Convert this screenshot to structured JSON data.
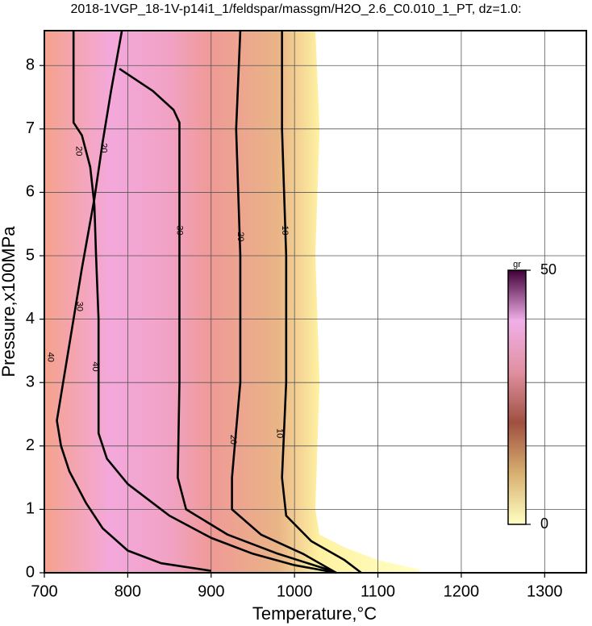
{
  "chart_data": {
    "type": "contour",
    "title": "2018-1VGP_18-1V-p14i1_1/feldspar/massgm/H2O_2.6_C0.010_1_PT, dz=1.0:",
    "x_label": "Temperature,°C",
    "y_label": "Pressure,x100MPa",
    "xlim": [
      700,
      1350
    ],
    "ylim": [
      0,
      8.55
    ],
    "xticks": [
      700,
      800,
      900,
      1000,
      1100,
      1200,
      1300
    ],
    "yticks": [
      0,
      1,
      2,
      3,
      4,
      5,
      6,
      7,
      8
    ],
    "grid": true,
    "field": {
      "x": [
        1025,
        1030,
        1025,
        1030,
        1025,
        1030,
        1060,
        1100,
        1150,
        1150
      ],
      "y": [
        8.55,
        7,
        5,
        3,
        1,
        0.6,
        0.4,
        0.2,
        0.05,
        0
      ],
      "colors": [
        {
          "x": 700,
          "color": "#f5a28c"
        },
        {
          "x": 780,
          "color": "#f3a8dc"
        },
        {
          "x": 850,
          "color": "#f1a2c4"
        },
        {
          "x": 900,
          "color": "#ef9a96"
        },
        {
          "x": 980,
          "color": "#e9b486"
        },
        {
          "x": 1030,
          "color": "#fff2a2"
        },
        {
          "x": 1150,
          "color": "#ffffc4"
        }
      ]
    },
    "contours": [
      {
        "level": 10,
        "x": [
          985,
          985,
          990,
          990,
          985,
          990,
          1020,
          1060,
          1080
        ],
        "y": [
          8.55,
          7,
          5,
          3,
          1.5,
          0.9,
          0.5,
          0.2,
          0
        ]
      },
      {
        "level": 20,
        "x": [
          935,
          930,
          935,
          935,
          925,
          925,
          960,
          1010,
          1050
        ],
        "y": [
          8.55,
          7,
          5,
          3,
          1.5,
          1.0,
          0.6,
          0.3,
          0
        ]
      },
      {
        "level": 30,
        "x": [
          790,
          830,
          855,
          862,
          862,
          862,
          860,
          870,
          920,
          980,
          1040,
          1050
        ],
        "y": [
          7.95,
          7.6,
          7.3,
          7.1,
          5,
          3,
          1.5,
          1.0,
          0.6,
          0.3,
          0.05,
          0
        ]
      },
      {
        "level": 40,
        "x": [
          760,
          762,
          765,
          765,
          765,
          775,
          800,
          850,
          900,
          950,
          1000,
          1050
        ],
        "y": [
          5.8,
          5,
          4,
          3.2,
          2.2,
          1.8,
          1.4,
          0.9,
          0.55,
          0.3,
          0.12,
          0
        ]
      },
      {
        "level": 20,
        "x": [
          735,
          735,
          745,
          755,
          760
        ],
        "y": [
          8.55,
          7.1,
          6.9,
          6.4,
          5.8
        ]
      },
      {
        "level": 20,
        "x": [
          793,
          780,
          770,
          760,
          745,
          730,
          720,
          715,
          720,
          730,
          750,
          770,
          800,
          840,
          900
        ],
        "y": [
          8.55,
          7.6,
          6.8,
          5.9,
          4.8,
          3.6,
          2.8,
          2.4,
          2.0,
          1.6,
          1.1,
          0.7,
          0.35,
          0.15,
          0.03
        ]
      }
    ],
    "contour_labels": [
      {
        "text": "10",
        "x": 988,
        "y": 5.4
      },
      {
        "text": "10",
        "x": 982,
        "y": 2.2
      },
      {
        "text": "20",
        "x": 935,
        "y": 5.3
      },
      {
        "text": "20",
        "x": 926,
        "y": 2.1
      },
      {
        "text": "30",
        "x": 862,
        "y": 5.4
      },
      {
        "text": "40",
        "x": 761,
        "y": 3.25
      },
      {
        "text": "20",
        "x": 741,
        "y": 6.65
      },
      {
        "text": "20",
        "x": 771,
        "y": 6.7
      },
      {
        "text": "30",
        "x": 742,
        "y": 4.2
      },
      {
        "text": "40",
        "x": 707,
        "y": 3.4
      }
    ],
    "colorbar": {
      "label": "gr",
      "lim": [
        0,
        50
      ],
      "ticks": [
        0,
        50
      ],
      "colors": [
        "#ffffc4",
        "#d8b070",
        "#a05040",
        "#e090a0",
        "#f0b0e8",
        "#400038"
      ]
    }
  }
}
